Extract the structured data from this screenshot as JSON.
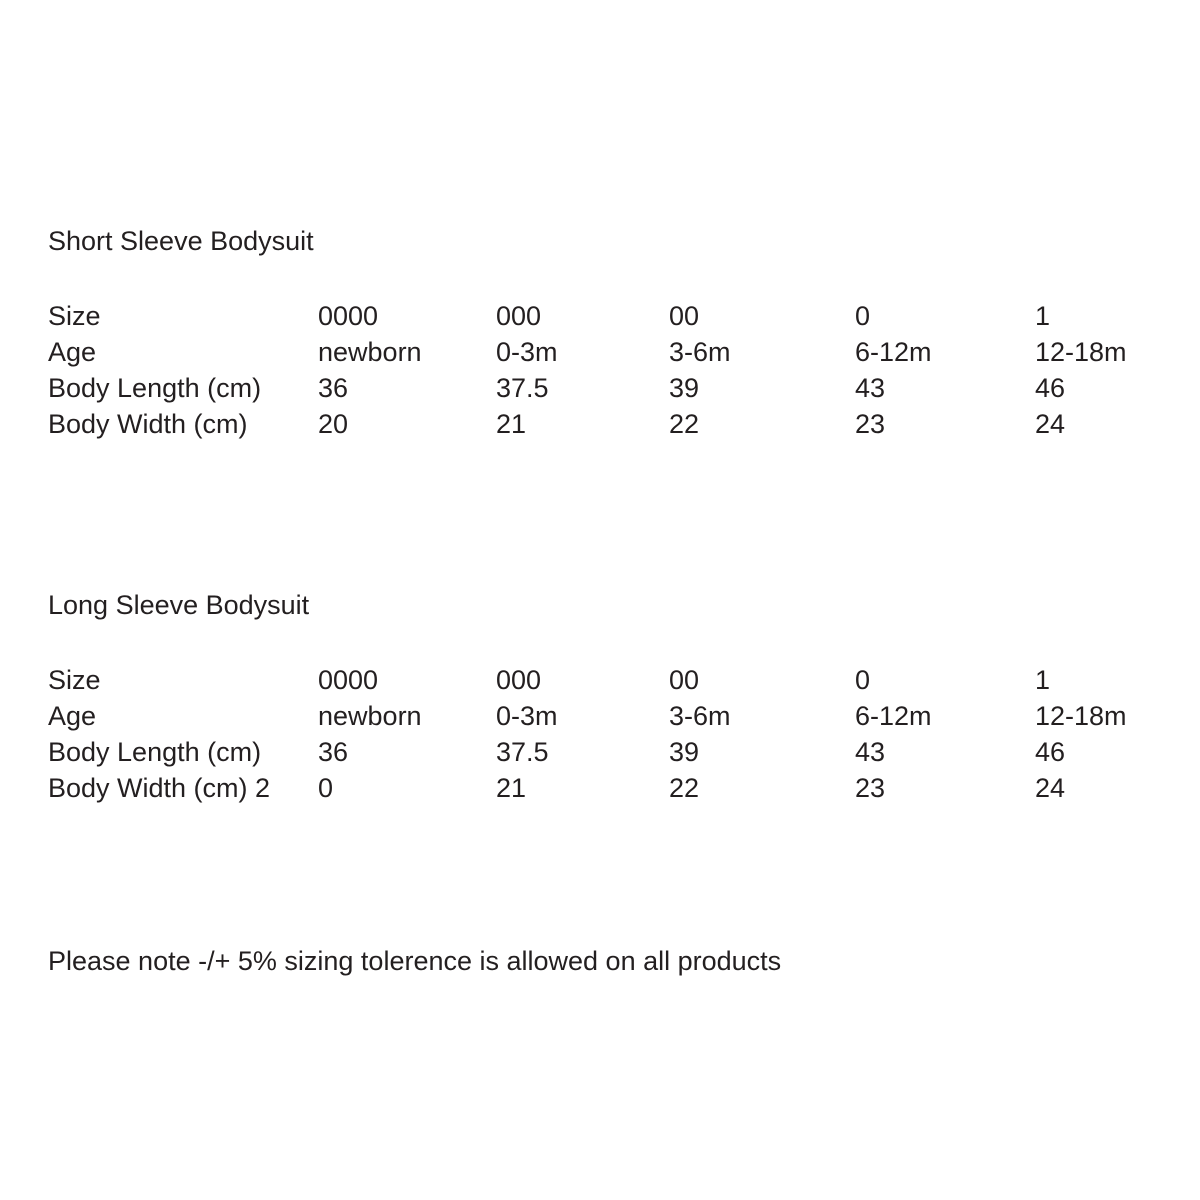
{
  "page": {
    "background_color": "#ffffff",
    "text_color": "#231f20"
  },
  "short_sleeve": {
    "title": "Short Sleeve Bodysuit",
    "rows": [
      {
        "label": "Size",
        "values": [
          "0000",
          "000",
          "00",
          "0",
          "1"
        ]
      },
      {
        "label": "Age",
        "values": [
          "newborn",
          "0-3m",
          "3-6m",
          "6-12m",
          "12-18m"
        ]
      },
      {
        "label": "Body Length (cm)",
        "values": [
          "36",
          "37.5",
          "39",
          "43",
          "46"
        ]
      },
      {
        "label": "Body Width (cm)",
        "values": [
          "20",
          "21",
          "22",
          "23",
          "24"
        ]
      }
    ]
  },
  "long_sleeve": {
    "title": "Long Sleeve Bodysuit",
    "rows": [
      {
        "label": "Size",
        "values": [
          "0000",
          "000",
          "00",
          "0",
          "1"
        ]
      },
      {
        "label": "Age",
        "values": [
          "newborn",
          "0-3m",
          "3-6m",
          "6-12m",
          "12-18m"
        ]
      },
      {
        "label": "Body Length (cm)",
        "values": [
          "36",
          "37.5",
          "39",
          "43",
          "46"
        ]
      },
      {
        "label": "Body Width (cm) 2",
        "values": [
          "0",
          "21",
          "22",
          "23",
          "24"
        ]
      }
    ]
  },
  "note": "Please note -/+ 5% sizing tolerence is allowed on all products"
}
